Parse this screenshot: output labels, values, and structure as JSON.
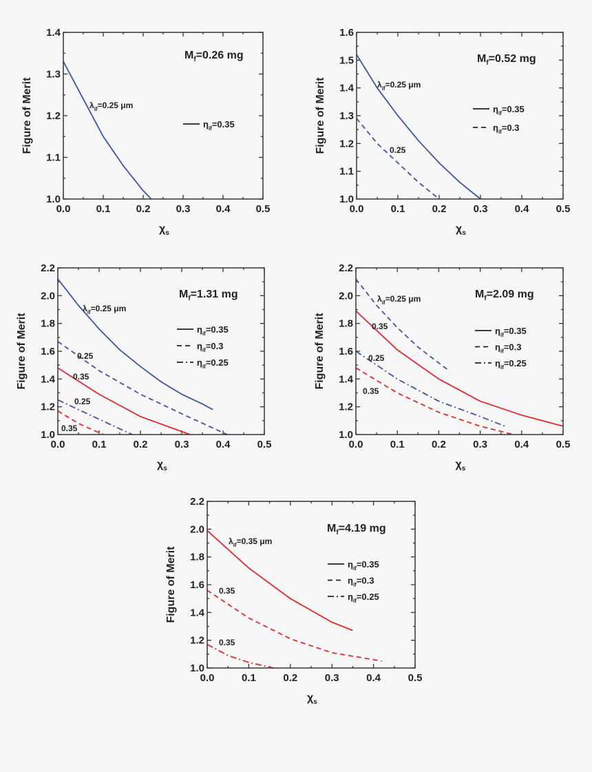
{
  "colors": {
    "blue": "#3a55a8",
    "red": "#e8262d",
    "axis": "#333333",
    "background": "#f7f7f7"
  },
  "chart_data": [
    {
      "type": "line",
      "title": {
        "main": "M",
        "sub": "f",
        "rest": "=0.26 mg"
      },
      "xlabel": {
        "main": "χ",
        "sub": "s"
      },
      "ylabel": "Figure of Merit",
      "xlim": [
        0,
        0.5
      ],
      "ylim": [
        1.0,
        1.4
      ],
      "xticks": [
        "0.0",
        "0.1",
        "0.2",
        "0.3",
        "0.4",
        "0.5"
      ],
      "yticks": [
        "1.0",
        "1.1",
        "1.2",
        "1.3",
        "1.4"
      ],
      "legend": [
        {
          "style": "solid",
          "main": "η",
          "sub": "if",
          "rest": "=0.35"
        }
      ],
      "annotations": [
        {
          "main": "λ",
          "sub": "if",
          "rest": "=0.25 μm"
        }
      ],
      "series": [
        {
          "color": "blue",
          "style": "solid",
          "x": [
            0,
            0.05,
            0.1,
            0.15,
            0.2,
            0.22
          ],
          "y": [
            1.33,
            1.24,
            1.15,
            1.08,
            1.02,
            1.0
          ]
        }
      ]
    },
    {
      "type": "line",
      "title": {
        "main": "M",
        "sub": "f",
        "rest": "=0.52 mg"
      },
      "xlabel": {
        "main": "χ",
        "sub": "s"
      },
      "ylabel": "Figure of Merit",
      "xlim": [
        0,
        0.5
      ],
      "ylim": [
        1.0,
        1.6
      ],
      "xticks": [
        "0.0",
        "0.1",
        "0.2",
        "0.3",
        "0.4",
        "0.5"
      ],
      "yticks": [
        "1.0",
        "1.1",
        "1.2",
        "1.3",
        "1.4",
        "1.5",
        "1.6"
      ],
      "legend": [
        {
          "style": "solid",
          "main": "η",
          "sub": "if",
          "rest": "=0.35"
        },
        {
          "style": "dashed",
          "main": "η",
          "sub": "if",
          "rest": "=0.3"
        }
      ],
      "annotations": [
        {
          "main": "λ",
          "sub": "if",
          "rest": "=0.25 μm"
        },
        {
          "main": "0.25",
          "sub": "",
          "rest": ""
        }
      ],
      "series": [
        {
          "color": "blue",
          "style": "solid",
          "x": [
            0,
            0.05,
            0.1,
            0.15,
            0.2,
            0.25,
            0.3
          ],
          "y": [
            1.52,
            1.4,
            1.3,
            1.21,
            1.13,
            1.06,
            1.0
          ]
        },
        {
          "color": "blue",
          "style": "dashed",
          "x": [
            0,
            0.05,
            0.1,
            0.15,
            0.2
          ],
          "y": [
            1.29,
            1.2,
            1.13,
            1.06,
            1.0
          ]
        }
      ]
    },
    {
      "type": "line",
      "title": {
        "main": "M",
        "sub": "f",
        "rest": "=1.31 mg"
      },
      "xlabel": {
        "main": "χ",
        "sub": "s"
      },
      "ylabel": "Figure of Merit",
      "xlim": [
        0,
        0.5
      ],
      "ylim": [
        1.0,
        2.2
      ],
      "xticks": [
        "0.0",
        "0.1",
        "0.2",
        "0.3",
        "0.4",
        "0.5"
      ],
      "yticks": [
        "1.0",
        "1.2",
        "1.4",
        "1.6",
        "1.8",
        "2.0",
        "2.2"
      ],
      "legend": [
        {
          "style": "solid",
          "main": "η",
          "sub": "if",
          "rest": "=0.35"
        },
        {
          "style": "dashed",
          "main": "η",
          "sub": "if",
          "rest": "=0.3"
        },
        {
          "style": "dashdot",
          "main": "η",
          "sub": "if",
          "rest": "=0.25"
        }
      ],
      "annotations": [
        {
          "main": "λ",
          "sub": "if",
          "rest": "=0.25 μm"
        },
        {
          "main": "0.25",
          "sub": "",
          "rest": ""
        },
        {
          "main": "0.35",
          "sub": "",
          "rest": ""
        },
        {
          "main": "0.25",
          "sub": "",
          "rest": ""
        },
        {
          "main": "0.35",
          "sub": "",
          "rest": ""
        }
      ],
      "series": [
        {
          "color": "blue",
          "style": "solid",
          "x": [
            0,
            0.05,
            0.1,
            0.15,
            0.2,
            0.25,
            0.3,
            0.35,
            0.375
          ],
          "y": [
            2.12,
            1.93,
            1.76,
            1.61,
            1.49,
            1.38,
            1.29,
            1.22,
            1.18
          ]
        },
        {
          "color": "blue",
          "style": "dashed",
          "x": [
            0,
            0.1,
            0.2,
            0.3,
            0.41
          ],
          "y": [
            1.67,
            1.46,
            1.29,
            1.15,
            1.0
          ]
        },
        {
          "color": "red",
          "style": "solid",
          "x": [
            0,
            0.1,
            0.2,
            0.32
          ],
          "y": [
            1.48,
            1.29,
            1.13,
            1.0
          ]
        },
        {
          "color": "blue",
          "style": "dashdot",
          "x": [
            0,
            0.1,
            0.18
          ],
          "y": [
            1.25,
            1.11,
            1.0
          ]
        },
        {
          "color": "red",
          "style": "dashed",
          "x": [
            0,
            0.05,
            0.11
          ],
          "y": [
            1.17,
            1.08,
            1.0
          ]
        }
      ]
    },
    {
      "type": "line",
      "title": {
        "main": "M",
        "sub": "f",
        "rest": "=2.09 mg"
      },
      "xlabel": {
        "main": "χ",
        "sub": "s"
      },
      "ylabel": "Figure of Merit",
      "xlim": [
        0,
        0.5
      ],
      "ylim": [
        1.0,
        2.2
      ],
      "xticks": [
        "0.0",
        "0.1",
        "0.2",
        "0.3",
        "0.4",
        "0.5"
      ],
      "yticks": [
        "1.0",
        "1.2",
        "1.4",
        "1.6",
        "1.8",
        "2.0",
        "2.2"
      ],
      "legend": [
        {
          "style": "solid",
          "main": "η",
          "sub": "if",
          "rest": "=0.35"
        },
        {
          "style": "dashed",
          "main": "η",
          "sub": "if",
          "rest": "=0.3"
        },
        {
          "style": "dashdot",
          "main": "η",
          "sub": "if",
          "rest": "=0.25"
        }
      ],
      "annotations": [
        {
          "main": "λ",
          "sub": "if",
          "rest": "=0.25 μm"
        },
        {
          "main": "0.35",
          "sub": "",
          "rest": ""
        },
        {
          "main": "0.25",
          "sub": "",
          "rest": ""
        },
        {
          "main": "0.35",
          "sub": "",
          "rest": ""
        }
      ],
      "series": [
        {
          "color": "blue",
          "style": "dashed",
          "x": [
            0,
            0.05,
            0.1,
            0.15,
            0.22
          ],
          "y": [
            2.12,
            1.93,
            1.77,
            1.63,
            1.47
          ]
        },
        {
          "color": "red",
          "style": "solid",
          "x": [
            0,
            0.1,
            0.2,
            0.3,
            0.4,
            0.5
          ],
          "y": [
            1.89,
            1.61,
            1.4,
            1.24,
            1.14,
            1.06
          ]
        },
        {
          "color": "blue",
          "style": "dashdot",
          "x": [
            0,
            0.1,
            0.2,
            0.3,
            0.36
          ],
          "y": [
            1.6,
            1.4,
            1.24,
            1.13,
            1.06
          ]
        },
        {
          "color": "red",
          "style": "dashed",
          "x": [
            0,
            0.1,
            0.2,
            0.3,
            0.38
          ],
          "y": [
            1.48,
            1.3,
            1.16,
            1.06,
            1.0
          ]
        }
      ]
    },
    {
      "type": "line",
      "title": {
        "main": "M",
        "sub": "f",
        "rest": "=4.19 mg"
      },
      "xlabel": {
        "main": "χ",
        "sub": "s"
      },
      "ylabel": "Figure of Merit",
      "xlim": [
        0,
        0.5
      ],
      "ylim": [
        1.0,
        2.2
      ],
      "xticks": [
        "0.0",
        "0.1",
        "0.2",
        "0.3",
        "0.4",
        "0.5"
      ],
      "yticks": [
        "1.0",
        "1.2",
        "1.4",
        "1.6",
        "1.8",
        "2.0",
        "2.2"
      ],
      "legend": [
        {
          "style": "solid",
          "main": "η",
          "sub": "if",
          "rest": "=0.35"
        },
        {
          "style": "dashed",
          "main": "η",
          "sub": "if",
          "rest": "=0.3"
        },
        {
          "style": "dashdot",
          "main": "η",
          "sub": "if",
          "rest": "=0.25"
        }
      ],
      "annotations": [
        {
          "main": "λ",
          "sub": "if",
          "rest": "=0.35 μm"
        },
        {
          "main": "0.35",
          "sub": "",
          "rest": ""
        },
        {
          "main": "0.35",
          "sub": "",
          "rest": ""
        }
      ],
      "series": [
        {
          "color": "red",
          "style": "solid",
          "x": [
            0,
            0.1,
            0.2,
            0.3,
            0.35
          ],
          "y": [
            1.99,
            1.72,
            1.5,
            1.33,
            1.27
          ]
        },
        {
          "color": "red",
          "style": "dashed",
          "x": [
            0,
            0.1,
            0.2,
            0.3,
            0.42
          ],
          "y": [
            1.56,
            1.36,
            1.21,
            1.11,
            1.05
          ]
        },
        {
          "color": "red",
          "style": "dashdot",
          "x": [
            0,
            0.05,
            0.1,
            0.16
          ],
          "y": [
            1.17,
            1.09,
            1.04,
            1.0
          ]
        }
      ]
    }
  ]
}
